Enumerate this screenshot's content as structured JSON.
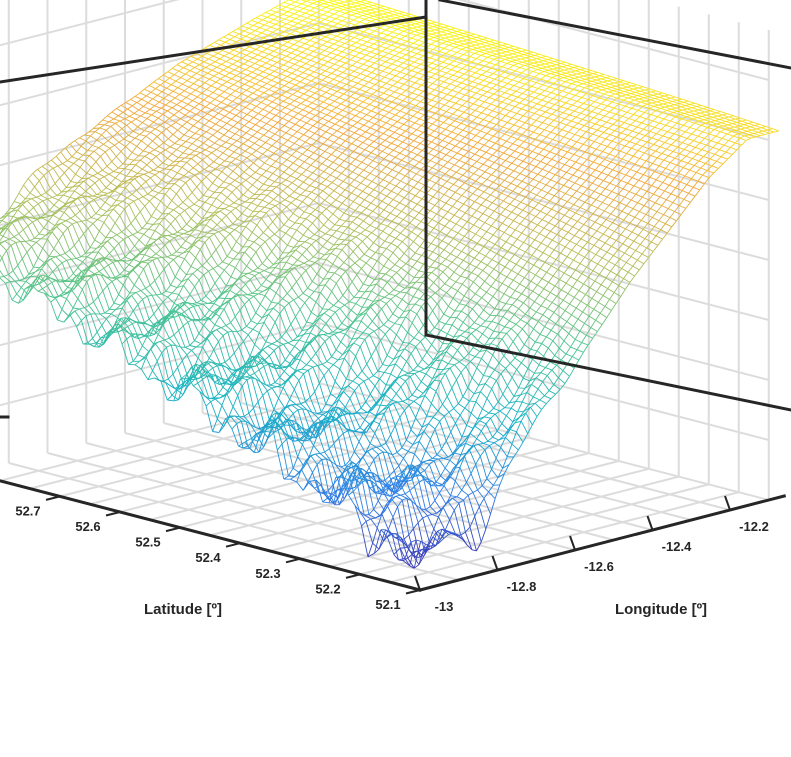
{
  "chart_data": {
    "type": "surface",
    "xlabel": "Latitude [º]",
    "ylabel": "Longitude [º]",
    "x_ticks": [
      "52.7",
      "52.6",
      "52.5",
      "52.4",
      "52.3",
      "52.2",
      "52.1"
    ],
    "y_ticks": [
      "-13",
      "-12.8",
      "-12.6",
      "-12.4",
      "-12.2"
    ],
    "xlim": [
      52.1,
      52.8
    ],
    "ylim": [
      -13.0,
      -12.1
    ],
    "grid": true,
    "colormap": [
      "#3e26a8",
      "#2f7ee8",
      "#19b3c4",
      "#4fc58f",
      "#b3c05a",
      "#f3a83b",
      "#f9f918"
    ],
    "series": [
      {
        "style": "mesh-wireframe",
        "surface_profile": {
          "longitude": [
            -13.0,
            -12.8,
            -12.6,
            -12.4,
            -12.2,
            -12.1
          ],
          "relative_height_at_latitude_52_1": [
            0.02,
            0.05,
            0.35,
            0.62,
            0.85,
            0.93
          ],
          "relative_height_at_latitude_52_8": [
            0.55,
            0.68,
            0.8,
            0.9,
            0.97,
            1.0
          ]
        }
      }
    ]
  }
}
